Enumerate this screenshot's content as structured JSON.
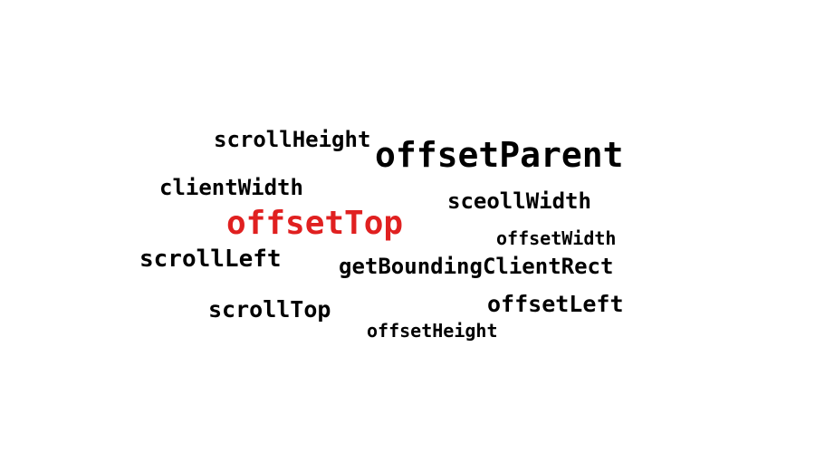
{
  "word_cloud": {
    "colors": {
      "default": "#000000",
      "highlight": "#e02020",
      "background": "#ffffff"
    },
    "words": {
      "scroll_height": "scrollHeight",
      "offset_parent": "offsetParent",
      "client_width": "clientWidth",
      "sceoll_width": "sceollWidth",
      "offset_top": "offsetTop",
      "offset_width": "offsetWidth",
      "scroll_left": "scrollLeft",
      "get_bounding_client_rect": "getBoundingClientRect",
      "offset_left": "offsetLeft",
      "scroll_top": "scrollTop",
      "offset_height": "offsetHeight"
    }
  }
}
